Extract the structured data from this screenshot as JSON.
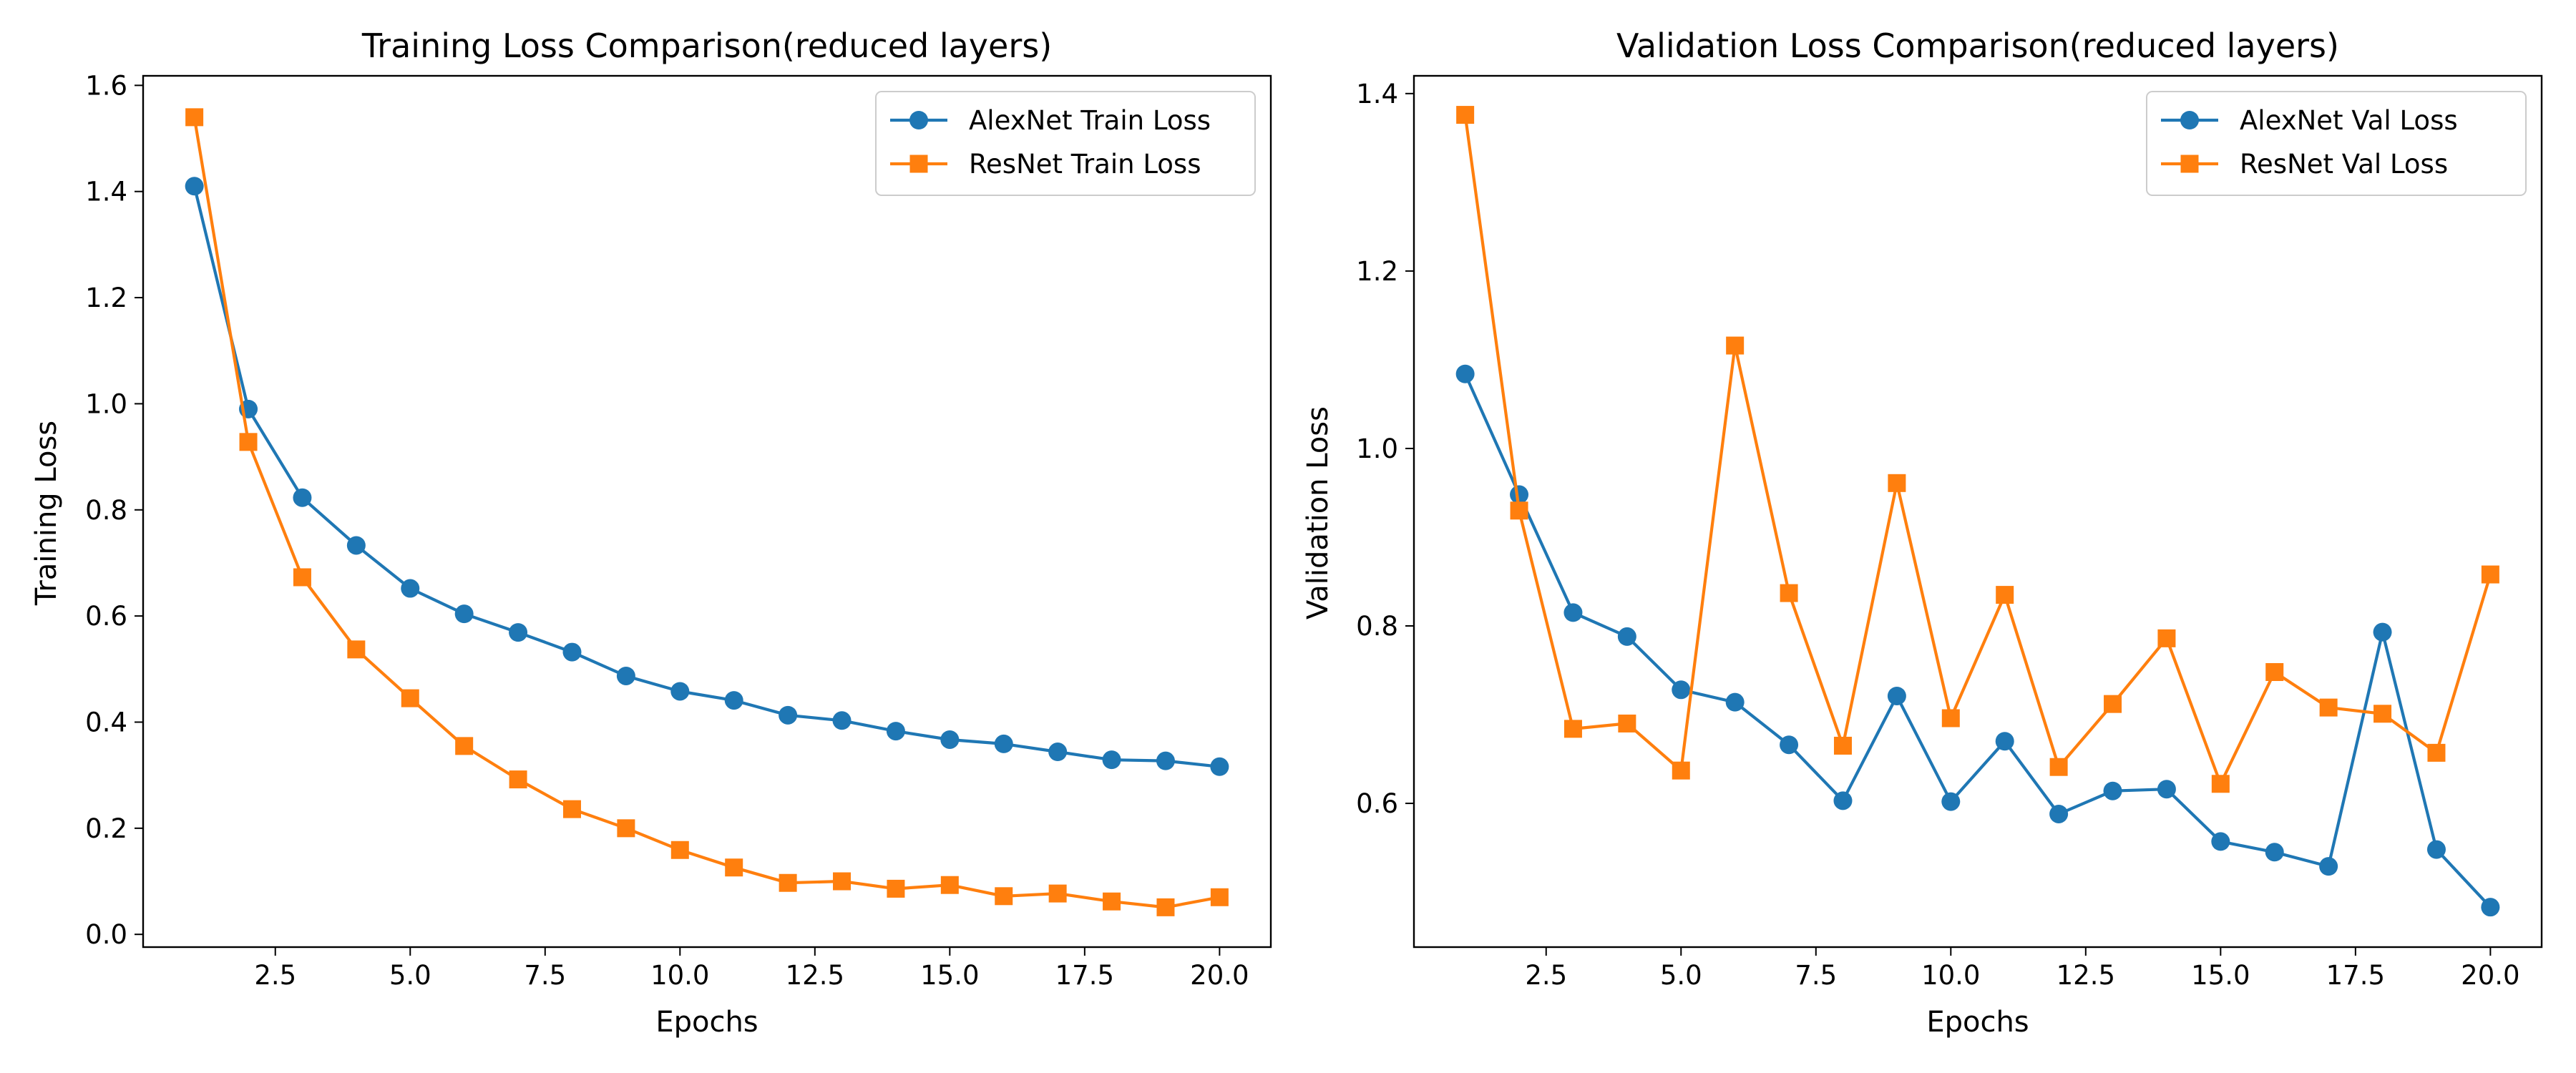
{
  "colors": {
    "alexnet": "#1f77b4",
    "resnet": "#ff7f0e"
  },
  "chart_data": [
    {
      "type": "line",
      "title": "Training Loss Comparison(reduced layers)",
      "xlabel": "Epochs",
      "ylabel": "Training Loss",
      "xlim": [
        0.05,
        20.95
      ],
      "ylim": [
        -0.024,
        1.618
      ],
      "xticks": [
        2.5,
        5.0,
        7.5,
        10.0,
        12.5,
        15.0,
        17.5,
        20.0
      ],
      "xtick_labels": [
        "2.5",
        "5.0",
        "7.5",
        "10.0",
        "12.5",
        "15.0",
        "17.5",
        "20.0"
      ],
      "yticks": [
        0.0,
        0.2,
        0.4,
        0.6,
        0.8,
        1.0,
        1.2,
        1.4,
        1.6
      ],
      "ytick_labels": [
        "0.0",
        "0.2",
        "0.4",
        "0.6",
        "0.8",
        "1.0",
        "1.2",
        "1.4",
        "1.6"
      ],
      "legend_position": "top-right",
      "grid": false,
      "x": [
        1,
        2,
        3,
        4,
        5,
        6,
        7,
        8,
        9,
        10,
        11,
        12,
        13,
        14,
        15,
        16,
        17,
        18,
        19,
        20
      ],
      "series": [
        {
          "name": "AlexNet Train Loss",
          "marker": "circle",
          "color_key": "alexnet",
          "values": [
            1.41,
            0.99,
            0.823,
            0.733,
            0.652,
            0.604,
            0.569,
            0.532,
            0.487,
            0.458,
            0.441,
            0.413,
            0.403,
            0.383,
            0.367,
            0.359,
            0.344,
            0.329,
            0.327,
            0.316
          ]
        },
        {
          "name": "ResNet Train Loss",
          "marker": "square",
          "color_key": "resnet",
          "values": [
            1.54,
            0.928,
            0.673,
            0.537,
            0.445,
            0.355,
            0.292,
            0.236,
            0.2,
            0.159,
            0.126,
            0.097,
            0.1,
            0.086,
            0.093,
            0.072,
            0.077,
            0.062,
            0.051,
            0.07
          ]
        }
      ]
    },
    {
      "type": "line",
      "title": "Validation Loss Comparison(reduced layers)",
      "xlabel": "Epochs",
      "ylabel": "Validation Loss",
      "xlim": [
        0.05,
        20.95
      ],
      "ylim": [
        0.438,
        1.42
      ],
      "xticks": [
        2.5,
        5.0,
        7.5,
        10.0,
        12.5,
        15.0,
        17.5,
        20.0
      ],
      "xtick_labels": [
        "2.5",
        "5.0",
        "7.5",
        "10.0",
        "12.5",
        "15.0",
        "17.5",
        "20.0"
      ],
      "yticks": [
        0.6,
        0.8,
        1.0,
        1.2,
        1.4
      ],
      "ytick_labels": [
        "0.6",
        "0.8",
        "1.0",
        "1.2",
        "1.4"
      ],
      "legend_position": "top-right",
      "grid": false,
      "x": [
        1,
        2,
        3,
        4,
        5,
        6,
        7,
        8,
        9,
        10,
        11,
        12,
        13,
        14,
        15,
        16,
        17,
        18,
        19,
        20
      ],
      "series": [
        {
          "name": "AlexNet Val Loss",
          "marker": "circle",
          "color_key": "alexnet",
          "values": [
            1.084,
            0.948,
            0.815,
            0.788,
            0.728,
            0.714,
            0.666,
            0.603,
            0.721,
            0.602,
            0.67,
            0.588,
            0.614,
            0.616,
            0.557,
            0.545,
            0.529,
            0.793,
            0.548,
            0.483
          ]
        },
        {
          "name": "ResNet Val Loss",
          "marker": "square",
          "color_key": "resnet",
          "values": [
            1.376,
            0.93,
            0.684,
            0.69,
            0.637,
            1.116,
            0.837,
            0.665,
            0.961,
            0.696,
            0.835,
            0.641,
            0.712,
            0.786,
            0.622,
            0.748,
            0.708,
            0.701,
            0.657,
            0.858
          ]
        }
      ]
    }
  ]
}
